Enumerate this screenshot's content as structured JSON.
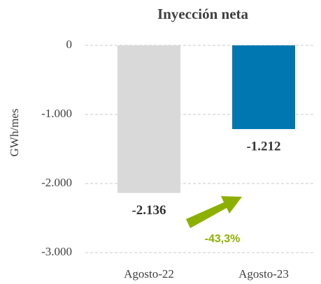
{
  "chart_data": {
    "type": "bar",
    "title": "Inyección neta",
    "y_label": "GWh/mes",
    "categories": [
      "Agosto-22",
      "Agosto-23"
    ],
    "values": [
      -2136,
      -1212
    ],
    "value_labels": [
      "-2.136",
      "-1.212"
    ],
    "colors": [
      "#d9d9d9",
      "#0077b0"
    ],
    "ylim": [
      -3000,
      0
    ],
    "yticks": [
      0,
      {
        "value": -1000,
        "label": "-1.000"
      },
      {
        "value": -2000,
        "label": "-2.000"
      },
      {
        "value": -3000,
        "label": "-3.000"
      }
    ],
    "grid": true,
    "annotation": {
      "text": "-43,3%",
      "color": "#8db000"
    }
  }
}
